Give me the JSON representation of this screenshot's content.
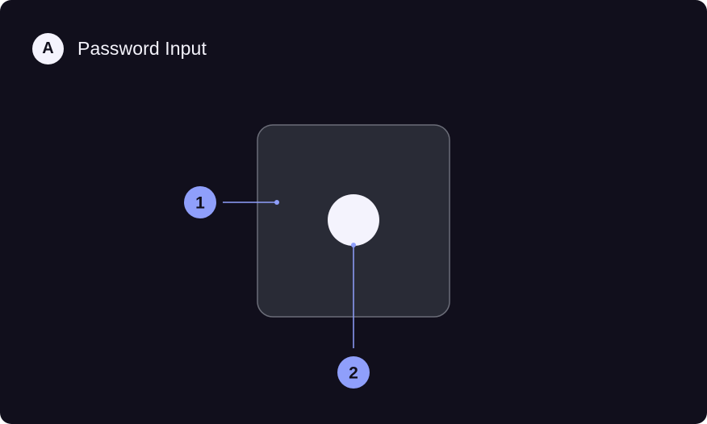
{
  "header": {
    "badge": "A",
    "title": "Password Input"
  },
  "markers": [
    {
      "label": "1"
    },
    {
      "label": "2"
    }
  ],
  "colors": {
    "background": "#110f1c",
    "container_fill": "#292b36",
    "container_stroke": "#6b6d78",
    "dot": "#f4f3fd",
    "accent": "#8f9ffb",
    "badge_bg": "#f4f3fd",
    "title_text": "#f3f2fa",
    "marker_text": "#110f1c"
  }
}
